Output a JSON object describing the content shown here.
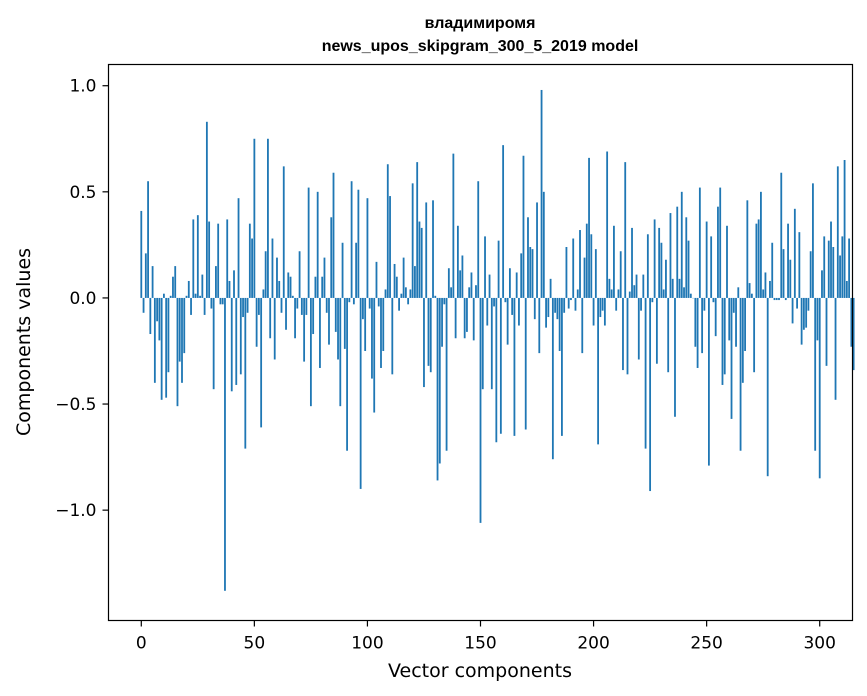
{
  "chart_data": {
    "type": "bar",
    "title_line1": "владимиромя",
    "title_line2": "news_upos_skipgram_300_5_2019 model",
    "xlabel": "Vector components",
    "ylabel": "Components values",
    "xlim": [
      -14.5,
      314.5
    ],
    "ylim": [
      -1.52,
      1.1
    ],
    "x_ticks": [
      0,
      50,
      100,
      150,
      200,
      250,
      300
    ],
    "x_tick_labels": [
      "0",
      "50",
      "100",
      "150",
      "200",
      "250",
      "300"
    ],
    "y_ticks": [
      -1.0,
      -0.5,
      0.0,
      0.5,
      1.0
    ],
    "y_tick_labels": [
      "−1.0",
      "−0.5",
      "0.0",
      "0.5",
      "1.0"
    ],
    "bar_color": "#1f77b4",
    "grid": false,
    "values": [
      0.41,
      -0.07,
      0.21,
      0.55,
      -0.17,
      0.15,
      -0.4,
      -0.11,
      -0.2,
      -0.48,
      0.02,
      -0.47,
      -0.35,
      0.01,
      0.1,
      0.15,
      -0.51,
      -0.3,
      -0.4,
      -0.26,
      0.01,
      0.08,
      -0.08,
      0.37,
      0.02,
      0.39,
      0.01,
      0.11,
      -0.08,
      0.83,
      0.36,
      -0.05,
      -0.43,
      0.15,
      0.35,
      -0.03,
      -0.03,
      -1.38,
      0.37,
      0.08,
      -0.44,
      0.13,
      -0.41,
      0.47,
      -0.36,
      -0.09,
      -0.71,
      -0.07,
      0.35,
      0.28,
      0.75,
      -0.23,
      -0.08,
      -0.61,
      0.04,
      0.22,
      0.75,
      -0.19,
      0.28,
      -0.29,
      0.19,
      0.08,
      -0.07,
      0.62,
      -0.15,
      0.12,
      0.1,
      0.01,
      -0.19,
      -0.05,
      0.22,
      -0.08,
      -0.3,
      -0.08,
      0.52,
      -0.51,
      -0.17,
      0.1,
      0.5,
      -0.33,
      0.1,
      0.19,
      -0.07,
      -0.22,
      0.38,
      0.59,
      -0.16,
      -0.29,
      -0.51,
      0.26,
      -0.24,
      -0.72,
      -0.02,
      0.55,
      -0.03,
      0.26,
      0.51,
      -0.9,
      -0.1,
      -0.25,
      0.47,
      -0.05,
      -0.38,
      -0.54,
      0.17,
      -0.04,
      -0.33,
      -0.25,
      0.04,
      0.63,
      0.48,
      -0.36,
      0.16,
      0.1,
      -0.06,
      0.02,
      0.19,
      0.05,
      -0.03,
      0.04,
      0.54,
      0.15,
      0.64,
      0.36,
      0.33,
      -0.42,
      0.45,
      -0.32,
      -0.35,
      0.46,
      0.01,
      -0.86,
      -0.78,
      -0.23,
      -0.03,
      -0.72,
      0.14,
      0.05,
      0.68,
      -0.19,
      0.34,
      0.13,
      0.2,
      -0.19,
      -0.16,
      0.05,
      0.12,
      -0.2,
      0.06,
      0.55,
      -1.06,
      -0.43,
      0.29,
      -0.13,
      0.11,
      -0.43,
      -0.04,
      -0.68,
      0.27,
      -0.64,
      0.72,
      -0.02,
      -0.22,
      0.14,
      -0.08,
      -0.65,
      0.12,
      -0.13,
      0.21,
      0.67,
      -0.62,
      0.38,
      0.24,
      0.23,
      -0.1,
      0.45,
      -0.26,
      0.98,
      0.5,
      -0.14,
      -0.09,
      0.09,
      -0.76,
      -0.07,
      -0.1,
      -0.25,
      -0.65,
      -0.07,
      0.24,
      -0.05,
      -0.01,
      0.28,
      -0.06,
      0.04,
      0.32,
      -0.26,
      0.19,
      0.35,
      0.66,
      0.3,
      -0.13,
      0.23,
      -0.69,
      -0.09,
      -0.06,
      -0.13,
      0.69,
      0.09,
      0.04,
      0.34,
      -0.06,
      0.04,
      0.22,
      -0.34,
      0.64,
      -0.36,
      0.03,
      0.33,
      0.06,
      0.11,
      -0.29,
      -0.06,
      0.11,
      -0.71,
      0.3,
      -0.91,
      -0.02,
      0.37,
      -0.31,
      0.33,
      0.26,
      0.04,
      0.18,
      -0.35,
      0.4,
      0.09,
      -0.56,
      0.43,
      0.09,
      0.5,
      0.05,
      0.38,
      0.27,
      0.02,
      0.0,
      -0.23,
      -0.33,
      0.52,
      -0.26,
      -0.06,
      0.36,
      -0.79,
      0.29,
      -0.02,
      -0.18,
      0.43,
      0.52,
      -0.41,
      -0.36,
      0.34,
      -0.2,
      -0.57,
      -0.07,
      -0.23,
      0.05,
      -0.72,
      -0.4,
      -0.25,
      0.46,
      0.07,
      0.02,
      -0.35,
      0.35,
      0.37,
      0.5,
      0.04,
      0.12,
      -0.84,
      0.08,
      0.26,
      -0.01,
      -0.01,
      -0.01,
      0.59,
      0.23,
      -0.01,
      0.35,
      0.18,
      -0.12,
      0.42,
      -0.05,
      0.31,
      -0.22,
      -0.15,
      -0.14,
      -0.06,
      0.22,
      0.54,
      -0.72,
      -0.2,
      -0.85,
      0.13,
      0.29,
      -0.32,
      0.27,
      0.36,
      0.24,
      -0.48,
      0.62,
      0.2,
      0.29,
      0.65,
      0.08,
      0.28,
      -0.23,
      -0.34
    ]
  }
}
